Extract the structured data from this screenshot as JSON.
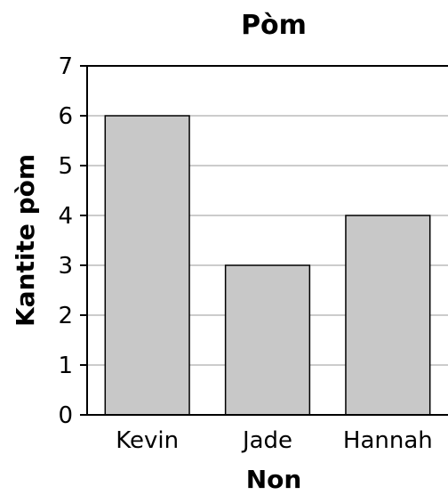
{
  "chart_data": {
    "type": "bar",
    "title": "Pòm",
    "xlabel": "Non",
    "ylabel": "Kantite pòm",
    "categories": [
      "Kevin",
      "Jade",
      "Hannah"
    ],
    "values": [
      6,
      3,
      4
    ],
    "ylim": [
      0,
      7
    ],
    "yticks": [
      "0",
      "1",
      "2",
      "3",
      "4",
      "5",
      "6",
      "7"
    ],
    "grid": true,
    "bar_color": "#c8c8c8"
  }
}
